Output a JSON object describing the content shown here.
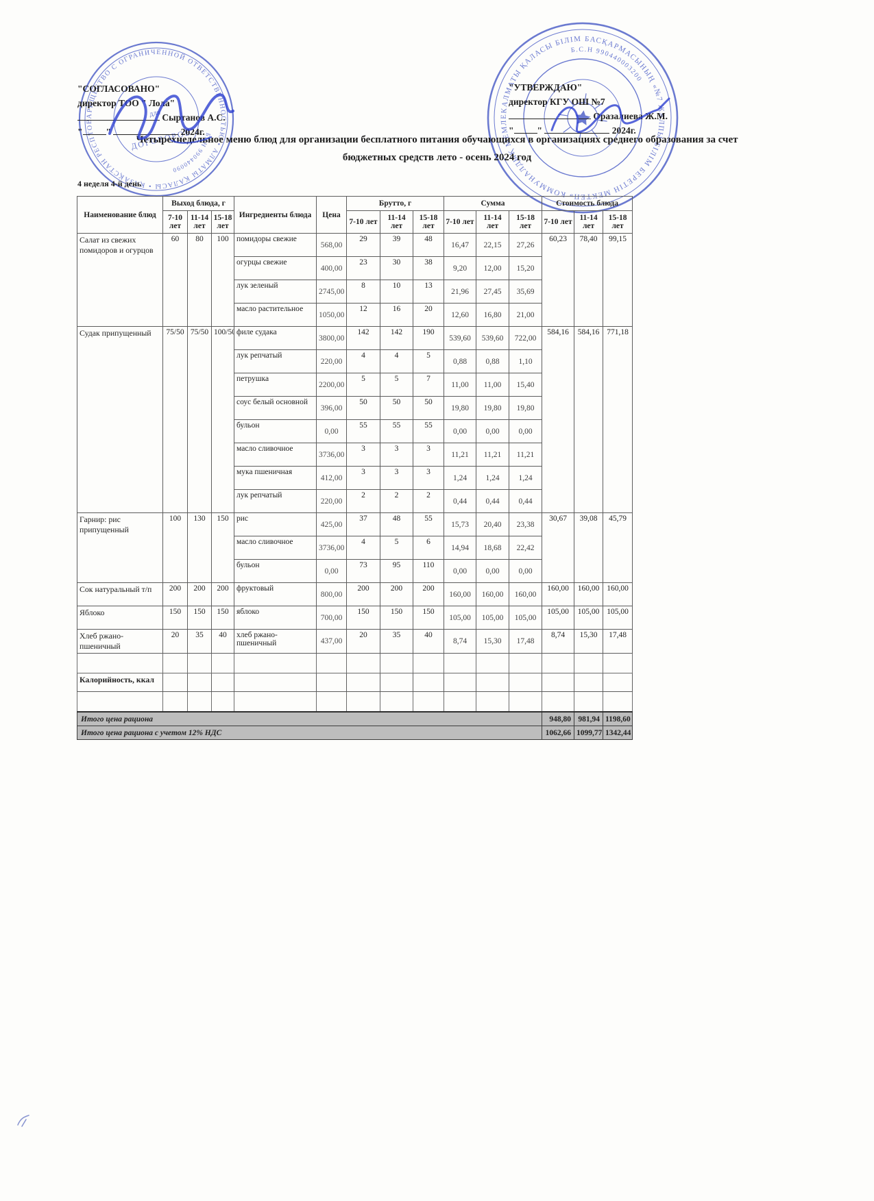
{
  "page": {
    "title": "Четырехнедельное меню блюд для организации бесплатного питания обучающихся в организациях среднего образования за счет бюджетных средств лето - осень 2024 год",
    "week_label": "4 неделя 4-й день"
  },
  "agreed": {
    "title": "\"СОГЛАСОВАНО\"",
    "role": "директор ТОО \" Лола\"",
    "signer": "Сыртанов А.С.",
    "date_suffix": "2024г."
  },
  "approved": {
    "title": "\"УТВЕРЖДАЮ\"",
    "role": "директор КГУ ОШ №7",
    "signer": "Оразалиева Ж.М.",
    "date_suffix": "2024г."
  },
  "stamps": {
    "left": {
      "ring_text": "ТОВАРИЩЕСТВО С ОГРАНИЧЕННОЙ ОТВЕТСТВЕННОСТЬЮ • АЛМАТЫ ҚАЛАСЫ • ҚАЗАҚСТАН РЕСПУБЛИКАСЫ • РЕСПУБЛИКА КАЗАХСТАН •",
      "inner_text": "БИН 990440090",
      "center_line1": "для",
      "center_line2": "ДОГОВОРОВ"
    },
    "right": {
      "ring_text": "АЛМАТЫ ҚАЛАСЫ БІЛІМ БАСҚАРМАСЫНЫҢ «№7 ЖАЛПЫ БІЛІМ БЕРЕТІН МЕКТЕП» КОММУНАЛДЫҚ МЕМЛЕКЕТТІК МЕКЕМЕСІ •",
      "inner_text": "Б.С.Н 990440003200"
    },
    "color": "#4356c5",
    "ink_color": "#2b3ecf"
  },
  "table": {
    "header": {
      "col_dish": "Наименование блюд",
      "group_out": "Выход блюда, г",
      "col_ingredients": "Ингредиенты блюда",
      "col_price": "Цена",
      "group_brutto": "Брутто, г",
      "group_sum": "Сумма",
      "group_cost": "Стоимость блюда",
      "ages": [
        "7-10 лет",
        "11-14 лет",
        "15-18 лет"
      ]
    },
    "dishes": [
      {
        "name": "Салат из свежих помидоров и огурцов",
        "out": [
          "60",
          "80",
          "100"
        ],
        "cost": [
          "60,23",
          "78,40",
          "99,15"
        ],
        "ingredients": [
          {
            "name": "помидоры свежие",
            "price": "568,00",
            "brutto": [
              "29",
              "39",
              "48"
            ],
            "sum": [
              "16,47",
              "22,15",
              "27,26"
            ]
          },
          {
            "name": "огурцы свежие",
            "price": "400,00",
            "brutto": [
              "23",
              "30",
              "38"
            ],
            "sum": [
              "9,20",
              "12,00",
              "15,20"
            ]
          },
          {
            "name": "лук зеленый",
            "price": "2745,00",
            "brutto": [
              "8",
              "10",
              "13"
            ],
            "sum": [
              "21,96",
              "27,45",
              "35,69"
            ]
          },
          {
            "name": "масло растительное",
            "price": "1050,00",
            "brutto": [
              "12",
              "16",
              "20"
            ],
            "sum": [
              "12,60",
              "16,80",
              "21,00"
            ]
          }
        ]
      },
      {
        "name": "Судак припущенный",
        "out": [
          "75/50",
          "75/50",
          "100/50"
        ],
        "cost": [
          "584,16",
          "584,16",
          "771,18"
        ],
        "ingredients": [
          {
            "name": "филе судака",
            "price": "3800,00",
            "brutto": [
              "142",
              "142",
              "190"
            ],
            "sum": [
              "539,60",
              "539,60",
              "722,00"
            ]
          },
          {
            "name": "лук репчатый",
            "price": "220,00",
            "brutto": [
              "4",
              "4",
              "5"
            ],
            "sum": [
              "0,88",
              "0,88",
              "1,10"
            ]
          },
          {
            "name": "петрушка",
            "price": "2200,00",
            "brutto": [
              "5",
              "5",
              "7"
            ],
            "sum": [
              "11,00",
              "11,00",
              "15,40"
            ]
          },
          {
            "name": "соус белый основной",
            "price": "396,00",
            "brutto": [
              "50",
              "50",
              "50"
            ],
            "sum": [
              "19,80",
              "19,80",
              "19,80"
            ]
          },
          {
            "name": "бульон",
            "price": "0,00",
            "brutto": [
              "55",
              "55",
              "55"
            ],
            "sum": [
              "0,00",
              "0,00",
              "0,00"
            ]
          },
          {
            "name": "масло сливочное",
            "price": "3736,00",
            "brutto": [
              "3",
              "3",
              "3"
            ],
            "sum": [
              "11,21",
              "11,21",
              "11,21"
            ]
          },
          {
            "name": "мука пшеничная",
            "price": "412,00",
            "brutto": [
              "3",
              "3",
              "3"
            ],
            "sum": [
              "1,24",
              "1,24",
              "1,24"
            ]
          },
          {
            "name": "лук репчатый",
            "price": "220,00",
            "brutto": [
              "2",
              "2",
              "2"
            ],
            "sum": [
              "0,44",
              "0,44",
              "0,44"
            ]
          }
        ]
      },
      {
        "name": "Гарнир: рис припущенный",
        "out": [
          "100",
          "130",
          "150"
        ],
        "cost": [
          "30,67",
          "39,08",
          "45,79"
        ],
        "ingredients": [
          {
            "name": "рис",
            "price": "425,00",
            "brutto": [
              "37",
              "48",
              "55"
            ],
            "sum": [
              "15,73",
              "20,40",
              "23,38"
            ]
          },
          {
            "name": "масло сливочное",
            "price": "3736,00",
            "brutto": [
              "4",
              "5",
              "6"
            ],
            "sum": [
              "14,94",
              "18,68",
              "22,42"
            ]
          },
          {
            "name": "бульон",
            "price": "0,00",
            "brutto": [
              "73",
              "95",
              "110"
            ],
            "sum": [
              "0,00",
              "0,00",
              "0,00"
            ]
          }
        ]
      },
      {
        "name": "Сок натуральный т/п",
        "out": [
          "200",
          "200",
          "200"
        ],
        "cost": [
          "160,00",
          "160,00",
          "160,00"
        ],
        "ingredients": [
          {
            "name": "фруктовый",
            "price": "800,00",
            "brutto": [
              "200",
              "200",
              "200"
            ],
            "sum": [
              "160,00",
              "160,00",
              "160,00"
            ]
          }
        ]
      },
      {
        "name": "Яблоко",
        "out": [
          "150",
          "150",
          "150"
        ],
        "cost": [
          "105,00",
          "105,00",
          "105,00"
        ],
        "ingredients": [
          {
            "name": "яблоко",
            "price": "700,00",
            "brutto": [
              "150",
              "150",
              "150"
            ],
            "sum": [
              "105,00",
              "105,00",
              "105,00"
            ]
          }
        ]
      },
      {
        "name": "Хлеб ржано-пшеничный",
        "out": [
          "20",
          "35",
          "40"
        ],
        "cost": [
          "8,74",
          "15,30",
          "17,48"
        ],
        "ingredients": [
          {
            "name": "хлеб ржано-пшеничный",
            "price": "437,00",
            "brutto": [
              "20",
              "35",
              "40"
            ],
            "sum": [
              "8,74",
              "15,30",
              "17,48"
            ]
          }
        ]
      }
    ],
    "calories_label": "Калорийность, ккал",
    "totals": [
      {
        "label": "Итого цена рациона",
        "values": [
          "948,80",
          "981,94",
          "1198,60"
        ]
      },
      {
        "label": "Итого цена рациона с учетом 12% НДС",
        "values": [
          "1062,66",
          "1099,77",
          "1342,44"
        ]
      }
    ]
  }
}
